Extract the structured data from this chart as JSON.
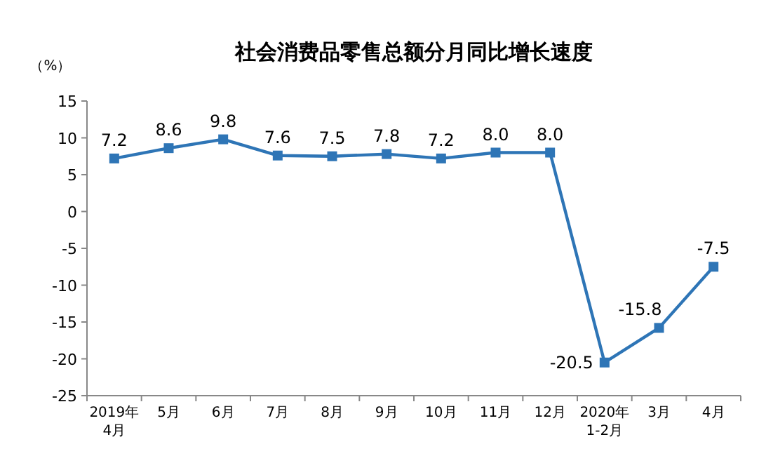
{
  "chart_data": {
    "type": "line",
    "title": "社会消费品零售总额分月同比增长速度",
    "ylabel": "（%）",
    "categories": [
      "2019年\n4月",
      "5月",
      "6月",
      "7月",
      "8月",
      "9月",
      "10月",
      "11月",
      "12月",
      "2020年\n1-2月",
      "3月",
      "4月"
    ],
    "series": [
      {
        "color": "#2e75b6",
        "values": [
          7.2,
          8.6,
          9.8,
          7.6,
          7.5,
          7.8,
          7.2,
          8.0,
          8.0,
          -20.5,
          -15.8,
          -7.5
        ],
        "value_labels": [
          "7.2",
          "8.6",
          "9.8",
          "7.6",
          "7.5",
          "7.8",
          "7.2",
          "8.0",
          "8.0",
          "-20.5",
          "-15.8",
          "-7.5"
        ]
      }
    ],
    "ylim": [
      -25,
      15
    ],
    "yticks": [
      -25,
      -20,
      -15,
      -10,
      -5,
      0,
      5,
      10,
      15
    ],
    "marker": "square"
  }
}
